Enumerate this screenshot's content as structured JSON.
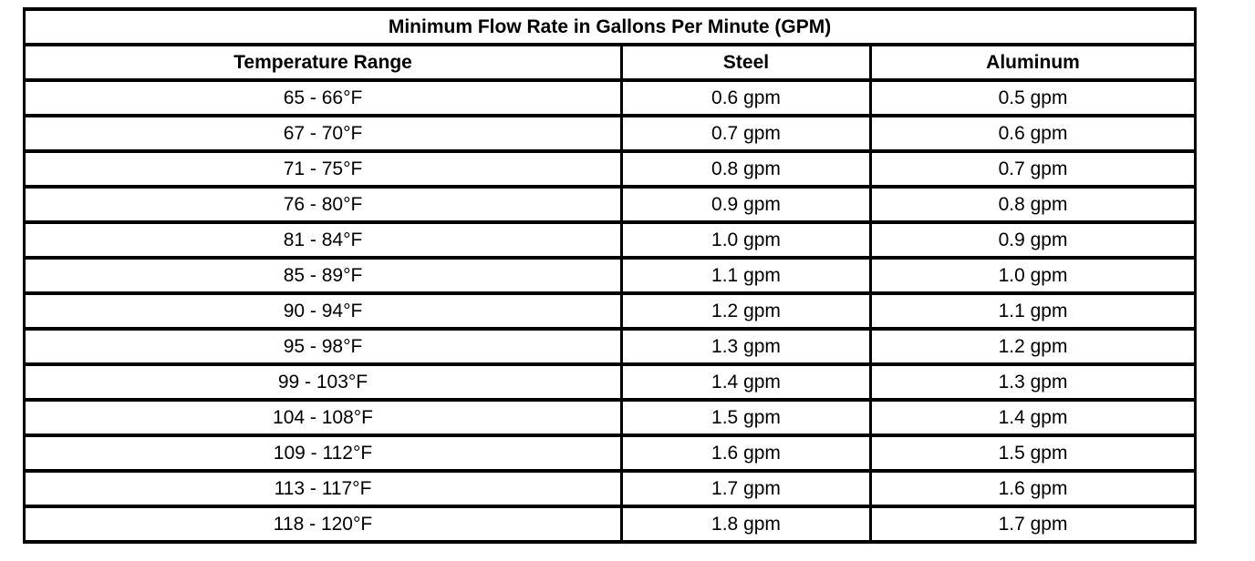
{
  "table": {
    "title": "Minimum Flow Rate in Gallons Per Minute (GPM)",
    "columns": [
      "Temperature Range",
      "Steel",
      "Aluminum"
    ],
    "rows": [
      {
        "temperature": "65 - 66°F",
        "steel": "0.6 gpm",
        "aluminum": "0.5 gpm"
      },
      {
        "temperature": "67 - 70°F",
        "steel": "0.7 gpm",
        "aluminum": "0.6 gpm"
      },
      {
        "temperature": "71 - 75°F",
        "steel": "0.8 gpm",
        "aluminum": "0.7 gpm"
      },
      {
        "temperature": "76 - 80°F",
        "steel": "0.9 gpm",
        "aluminum": "0.8 gpm"
      },
      {
        "temperature": "81 - 84°F",
        "steel": "1.0 gpm",
        "aluminum": "0.9 gpm"
      },
      {
        "temperature": "85 - 89°F",
        "steel": "1.1 gpm",
        "aluminum": "1.0 gpm"
      },
      {
        "temperature": "90 - 94°F",
        "steel": "1.2 gpm",
        "aluminum": "1.1 gpm"
      },
      {
        "temperature": "95 - 98°F",
        "steel": "1.3 gpm",
        "aluminum": "1.2 gpm"
      },
      {
        "temperature": "99 - 103°F",
        "steel": "1.4 gpm",
        "aluminum": "1.3 gpm"
      },
      {
        "temperature": "104 - 108°F",
        "steel": "1.5 gpm",
        "aluminum": "1.4 gpm"
      },
      {
        "temperature": "109 - 112°F",
        "steel": "1.6 gpm",
        "aluminum": "1.5 gpm"
      },
      {
        "temperature": "113 - 117°F",
        "steel": "1.7 gpm",
        "aluminum": "1.6 gpm"
      },
      {
        "temperature": "118 - 120°F",
        "steel": "1.8 gpm",
        "aluminum": "1.7 gpm"
      }
    ],
    "colors": {
      "border": "#000000",
      "text": "#000000",
      "background": "#ffffff"
    }
  },
  "chart_data": {
    "type": "table",
    "title": "Minimum Flow Rate in Gallons Per Minute (GPM)",
    "columns": [
      "Temperature Range",
      "Steel",
      "Aluminum"
    ],
    "rows": [
      [
        "65 - 66°F",
        "0.6 gpm",
        "0.5 gpm"
      ],
      [
        "67 - 70°F",
        "0.7 gpm",
        "0.6 gpm"
      ],
      [
        "71 - 75°F",
        "0.8 gpm",
        "0.7 gpm"
      ],
      [
        "76 - 80°F",
        "0.9 gpm",
        "0.8 gpm"
      ],
      [
        "81 - 84°F",
        "1.0 gpm",
        "0.9 gpm"
      ],
      [
        "85 - 89°F",
        "1.1 gpm",
        "1.0 gpm"
      ],
      [
        "90 - 94°F",
        "1.2 gpm",
        "1.1 gpm"
      ],
      [
        "95 - 98°F",
        "1.3 gpm",
        "1.2 gpm"
      ],
      [
        "99 - 103°F",
        "1.4 gpm",
        "1.3 gpm"
      ],
      [
        "104 - 108°F",
        "1.5 gpm",
        "1.4 gpm"
      ],
      [
        "109 - 112°F",
        "1.6 gpm",
        "1.5 gpm"
      ],
      [
        "113 - 117°F",
        "1.7 gpm",
        "1.6 gpm"
      ],
      [
        "118 - 120°F",
        "1.8 gpm",
        "1.7 gpm"
      ]
    ]
  }
}
